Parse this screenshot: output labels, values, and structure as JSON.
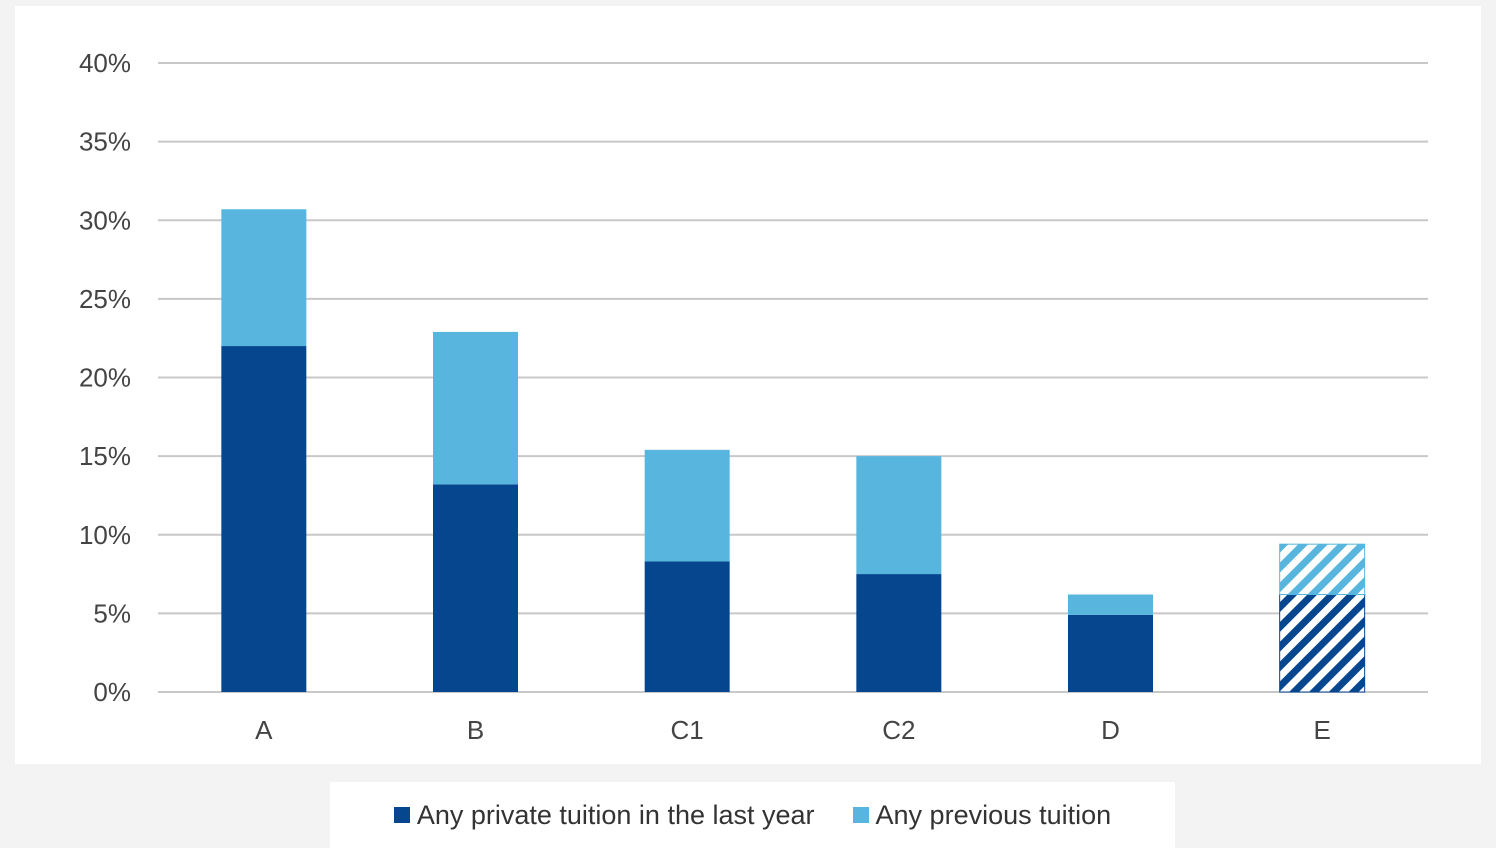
{
  "chart_data": {
    "type": "bar",
    "stacked": true,
    "categories": [
      "A",
      "B",
      "C1",
      "C2",
      "D",
      "E"
    ],
    "series": [
      {
        "name": "Any private tuition in the last year",
        "color": "#06468f",
        "values": [
          22.0,
          13.2,
          8.3,
          7.5,
          4.9,
          6.2
        ]
      },
      {
        "name": "Any previous tuition",
        "color": "#58b6de",
        "values": [
          8.7,
          9.7,
          7.1,
          7.5,
          1.3,
          3.2
        ]
      }
    ],
    "hatched_categories": [
      "E"
    ],
    "ylim": [
      0,
      40
    ],
    "yticks": [
      "0%",
      "5%",
      "10%",
      "15%",
      "20%",
      "25%",
      "30%",
      "35%",
      "40%"
    ],
    "grid": true,
    "legend_position": "bottom"
  }
}
